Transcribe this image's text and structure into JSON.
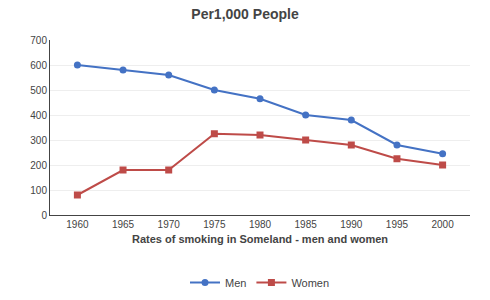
{
  "chart_data": {
    "type": "line",
    "title": "Per1,000 People",
    "xlabel": "Rates of smoking in Someland - men and women",
    "x": [
      1960,
      1965,
      1970,
      1975,
      1980,
      1985,
      1990,
      1995,
      2000
    ],
    "xlim": [
      1957,
      2003
    ],
    "xticks": [
      1960,
      1965,
      1970,
      1975,
      1980,
      1985,
      1990,
      1995,
      2000
    ],
    "ylim": [
      0,
      700
    ],
    "yticks": [
      0,
      100,
      200,
      300,
      400,
      500,
      600,
      700
    ],
    "grid": "y",
    "legend": "bottom",
    "series": [
      {
        "name": "Men",
        "color": "#4472C4",
        "marker": "circle",
        "values": [
          600,
          580,
          560,
          500,
          465,
          400,
          380,
          280,
          245
        ]
      },
      {
        "name": "Women",
        "color": "#BE4B48",
        "marker": "square",
        "values": [
          80,
          180,
          180,
          325,
          320,
          300,
          280,
          225,
          200
        ]
      }
    ]
  }
}
